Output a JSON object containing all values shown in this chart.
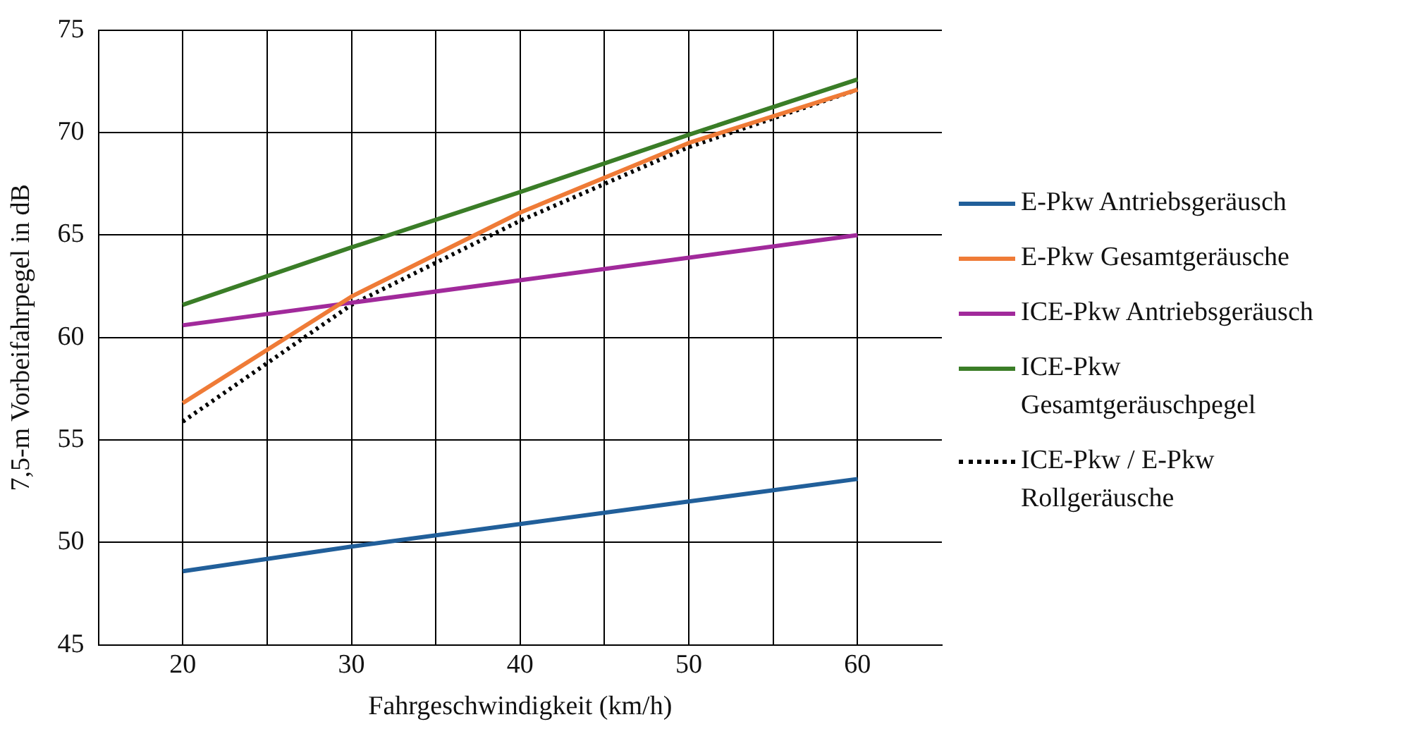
{
  "chart_data": {
    "type": "line",
    "xlabel": "Fahrgeschwindigkeit (km/h)",
    "ylabel": "7,5-m Vorbeifahrpegel in dB",
    "x": [
      20,
      30,
      40,
      50,
      60
    ],
    "xlim": [
      15,
      65
    ],
    "xticks": [
      20,
      {
        "value": 25,
        "label": null
      },
      30,
      {
        "value": 35,
        "label": null
      },
      40,
      {
        "value": 45,
        "label": null
      },
      50,
      {
        "value": 55,
        "label": null
      },
      60
    ],
    "ylim": [
      45,
      75
    ],
    "yticks": [
      45,
      50,
      55,
      60,
      65,
      70,
      75
    ],
    "grid": true,
    "legend": "right",
    "marker": "none",
    "series": [
      {
        "name": "E-Pkw Antriebsgeräusch",
        "color": "#215f9a",
        "values": [
          48.6,
          49.8,
          50.9,
          52.0,
          53.1
        ]
      },
      {
        "name": "E-Pkw Gesamtgeräusche",
        "color": "#ef7b37",
        "values": [
          56.8,
          62.0,
          66.1,
          69.5,
          72.1
        ]
      },
      {
        "name": "ICE-Pkw Antriebsgeräusch",
        "color": "#a12a9b",
        "values": [
          60.6,
          61.7,
          62.8,
          63.9,
          65.0
        ]
      },
      {
        "name": "ICE-Pkw Gesamtgeräuschpegel",
        "color": "#3a7d27",
        "values": [
          61.6,
          64.4,
          67.1,
          69.9,
          72.6
        ]
      },
      {
        "name": "ICE-Pkw / E-Pkw Rollgeräusche",
        "color": "#000000",
        "line_style": "dotted",
        "values": [
          55.9,
          61.6,
          65.7,
          69.3,
          72.1
        ]
      }
    ]
  }
}
